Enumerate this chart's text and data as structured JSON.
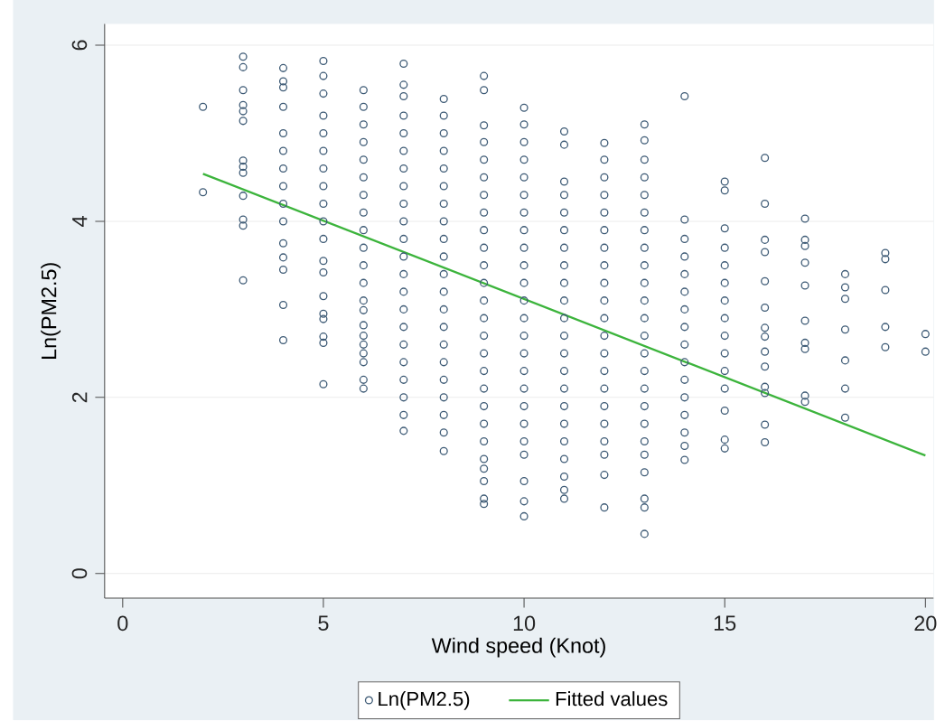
{
  "chart_data": {
    "type": "scatter",
    "xlabel": "Wind speed (Knot)",
    "ylabel": "Ln(PM2.5)",
    "xlim": [
      -0.45,
      20.2
    ],
    "ylim": [
      -0.28,
      6.24
    ],
    "xticks": [
      0,
      5,
      10,
      15,
      20
    ],
    "yticks": [
      0,
      2,
      4,
      6
    ],
    "grid": "y",
    "legend": "bottom",
    "series": [
      {
        "name": "Ln(PM2.5)",
        "marker": "circle",
        "color": "#3d5a75",
        "x": [
          2,
          2,
          3,
          3,
          3,
          3,
          3,
          3,
          3,
          3,
          3,
          3,
          3,
          3,
          3,
          4,
          4,
          4,
          4,
          4,
          4,
          4,
          4,
          4,
          4,
          4,
          4,
          4,
          4,
          4,
          5,
          5,
          5,
          5,
          5,
          5,
          5,
          5,
          5,
          5,
          5,
          5,
          5,
          5,
          5,
          5,
          5,
          5,
          5,
          6,
          6,
          6,
          6,
          6,
          6,
          6,
          6,
          6,
          6,
          6,
          6,
          6,
          6,
          6,
          6,
          6,
          6,
          6,
          6,
          6,
          7,
          7,
          7,
          7,
          7,
          7,
          7,
          7,
          7,
          7,
          7,
          7,
          7,
          7,
          7,
          7,
          7,
          7,
          7,
          7,
          7,
          7,
          8,
          8,
          8,
          8,
          8,
          8,
          8,
          8,
          8,
          8,
          8,
          8,
          8,
          8,
          8,
          8,
          8,
          8,
          8,
          8,
          8,
          9,
          9,
          9,
          9,
          9,
          9,
          9,
          9,
          9,
          9,
          9,
          9,
          9,
          9,
          9,
          9,
          9,
          9,
          9,
          9,
          9,
          9,
          9,
          9,
          9,
          9,
          10,
          10,
          10,
          10,
          10,
          10,
          10,
          10,
          10,
          10,
          10,
          10,
          10,
          10,
          10,
          10,
          10,
          10,
          10,
          10,
          10,
          10,
          10,
          10,
          11,
          11,
          11,
          11,
          11,
          11,
          11,
          11,
          11,
          11,
          11,
          11,
          11,
          11,
          11,
          11,
          11,
          11,
          11,
          11,
          11,
          11,
          12,
          12,
          12,
          12,
          12,
          12,
          12,
          12,
          12,
          12,
          12,
          12,
          12,
          12,
          12,
          12,
          12,
          12,
          12,
          12,
          12,
          13,
          13,
          13,
          13,
          13,
          13,
          13,
          13,
          13,
          13,
          13,
          13,
          13,
          13,
          13,
          13,
          13,
          13,
          13,
          13,
          13,
          13,
          13,
          13,
          14,
          14,
          14,
          14,
          14,
          14,
          14,
          14,
          14,
          14,
          14,
          14,
          14,
          14,
          14,
          14,
          15,
          15,
          15,
          15,
          15,
          15,
          15,
          15,
          15,
          15,
          15,
          15,
          15,
          15,
          15,
          16,
          16,
          16,
          16,
          16,
          16,
          16,
          16,
          16,
          16,
          16,
          16,
          16,
          16,
          17,
          17,
          17,
          17,
          17,
          17,
          17,
          17,
          17,
          17,
          18,
          18,
          18,
          18,
          18,
          18,
          18,
          19,
          19,
          19,
          19,
          19,
          20,
          20
        ],
        "values": [
          5.3,
          4.33,
          5.87,
          5.75,
          5.49,
          5.32,
          5.25,
          5.14,
          4.69,
          4.62,
          4.55,
          4.29,
          4.02,
          3.95,
          3.33,
          5.74,
          5.59,
          5.52,
          5.3,
          5.0,
          4.8,
          4.6,
          4.4,
          4.2,
          4.0,
          3.75,
          3.59,
          3.45,
          3.05,
          2.65,
          5.82,
          5.65,
          5.45,
          5.2,
          5.0,
          4.8,
          4.6,
          4.4,
          4.2,
          4.0,
          3.8,
          3.55,
          3.42,
          3.15,
          2.95,
          2.89,
          2.69,
          2.62,
          2.15,
          5.49,
          5.3,
          5.1,
          4.9,
          4.7,
          4.5,
          4.3,
          4.1,
          3.9,
          3.7,
          3.5,
          3.3,
          3.1,
          2.99,
          2.82,
          2.7,
          2.6,
          2.5,
          2.4,
          2.2,
          2.1,
          5.79,
          5.55,
          5.42,
          5.2,
          5.0,
          4.8,
          4.6,
          4.4,
          4.2,
          4.0,
          3.8,
          3.6,
          3.4,
          3.2,
          3.0,
          2.8,
          2.6,
          2.4,
          2.2,
          2.0,
          1.8,
          1.62,
          5.39,
          5.2,
          5.0,
          4.8,
          4.6,
          4.4,
          4.2,
          4.0,
          3.8,
          3.6,
          3.4,
          3.2,
          3.0,
          2.8,
          2.6,
          2.4,
          2.2,
          2.0,
          1.8,
          1.6,
          1.39,
          5.65,
          5.49,
          5.09,
          4.9,
          4.7,
          4.5,
          4.3,
          4.1,
          3.9,
          3.7,
          3.5,
          3.3,
          3.1,
          2.9,
          2.7,
          2.5,
          2.3,
          2.1,
          1.9,
          1.7,
          1.5,
          1.3,
          1.19,
          1.05,
          0.85,
          0.79,
          5.29,
          5.1,
          4.9,
          4.7,
          4.5,
          4.3,
          4.1,
          3.9,
          3.7,
          3.5,
          3.3,
          3.1,
          2.9,
          2.7,
          2.5,
          2.3,
          2.1,
          1.9,
          1.7,
          1.5,
          1.35,
          1.05,
          0.82,
          0.65,
          5.02,
          4.87,
          4.45,
          4.3,
          4.1,
          3.9,
          3.7,
          3.5,
          3.3,
          3.1,
          2.9,
          2.7,
          2.5,
          2.3,
          2.1,
          1.9,
          1.7,
          1.5,
          1.3,
          1.1,
          0.95,
          0.85,
          4.89,
          4.7,
          4.5,
          4.3,
          4.1,
          3.9,
          3.7,
          3.5,
          3.3,
          3.1,
          2.9,
          2.7,
          2.5,
          2.3,
          2.1,
          1.9,
          1.7,
          1.5,
          1.35,
          1.12,
          0.75,
          5.1,
          4.92,
          4.7,
          4.5,
          4.3,
          4.1,
          3.9,
          3.7,
          3.5,
          3.3,
          3.1,
          2.9,
          2.7,
          2.5,
          2.3,
          2.1,
          1.9,
          1.7,
          1.5,
          1.35,
          1.15,
          0.85,
          0.75,
          0.45,
          5.42,
          4.02,
          3.8,
          3.6,
          3.4,
          3.2,
          3.0,
          2.8,
          2.6,
          2.4,
          2.2,
          2.0,
          1.8,
          1.6,
          1.45,
          1.29,
          4.45,
          4.35,
          3.92,
          3.7,
          3.5,
          3.3,
          3.1,
          2.9,
          2.7,
          2.5,
          2.3,
          2.1,
          1.85,
          1.52,
          1.42,
          4.72,
          4.2,
          3.79,
          3.65,
          3.32,
          3.02,
          2.79,
          2.69,
          2.52,
          2.35,
          2.12,
          2.05,
          1.69,
          1.49,
          4.03,
          3.79,
          3.72,
          3.53,
          3.27,
          2.87,
          2.62,
          2.55,
          2.02,
          1.95,
          3.4,
          3.25,
          3.12,
          2.77,
          2.42,
          2.1,
          1.77,
          3.64,
          3.57,
          3.22,
          2.8,
          2.57,
          2.72,
          2.52
        ]
      },
      {
        "name": "Fitted values",
        "type": "line",
        "color": "#3cb43c",
        "x": [
          2,
          20
        ],
        "values": [
          4.54,
          1.34
        ]
      }
    ]
  }
}
